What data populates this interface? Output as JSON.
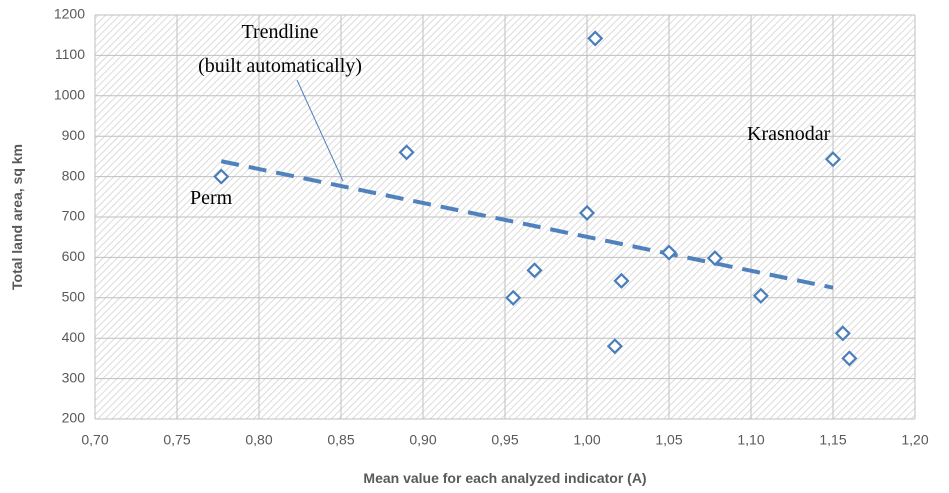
{
  "chart_data": {
    "type": "scatter",
    "x_label": "Mean value for each analyzed indicator (A)",
    "y_label": "Total land area, sq km",
    "x": [
      0.777,
      0.89,
      0.955,
      0.968,
      1.0,
      1.005,
      1.017,
      1.021,
      1.05,
      1.078,
      1.106,
      1.15,
      1.156,
      1.16
    ],
    "series": [
      {
        "color": "#4a7ebb",
        "values": [
          800,
          860,
          500,
          568,
          710,
          1142,
          380,
          542,
          612,
          598,
          505,
          843,
          412,
          350
        ]
      }
    ],
    "trendline": {
      "x": [
        0.777,
        1.15
      ],
      "values": [
        838,
        525
      ],
      "color": "#4f81bd"
    },
    "xlim": [
      0.7,
      1.2
    ],
    "xticks": [
      {
        "value": 0.7,
        "label": "0,70"
      },
      {
        "value": 0.75,
        "label": "0,75"
      },
      {
        "value": 0.8,
        "label": "0,80"
      },
      {
        "value": 0.85,
        "label": "0,85"
      },
      {
        "value": 0.9,
        "label": "0,90"
      },
      {
        "value": 0.95,
        "label": "0,95"
      },
      {
        "value": 1.0,
        "label": "1,00"
      },
      {
        "value": 1.05,
        "label": "1,05"
      },
      {
        "value": 1.1,
        "label": "1,10"
      },
      {
        "value": 1.15,
        "label": "1,15"
      },
      {
        "value": 1.2,
        "label": "1,20"
      }
    ],
    "ylim": [
      200,
      1200
    ],
    "yticks": [
      200,
      300,
      400,
      500,
      600,
      700,
      800,
      900,
      1000,
      1100,
      1200
    ],
    "grid": true,
    "annotations": [
      "Trendline",
      "(built automatically)",
      "Perm",
      "Krasnodar"
    ]
  }
}
